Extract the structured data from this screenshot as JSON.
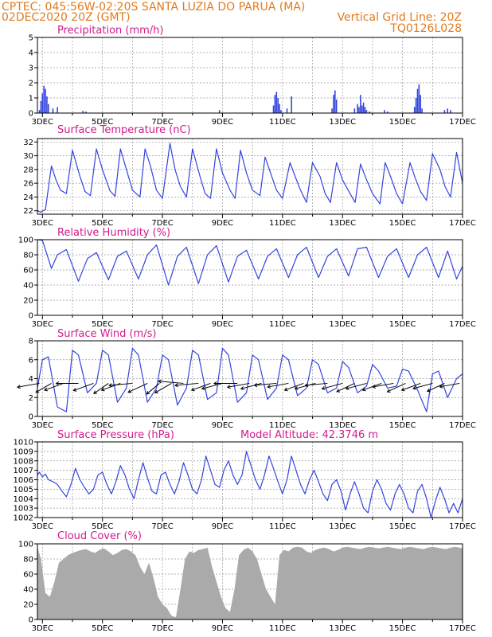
{
  "header": {
    "line1_left": "CPTEC:  045:56W-02:20S  SANTA LUZIA DO PARUA (MA)",
    "line2_left": "02DEC2020 20Z (GMT)",
    "line2_right": "Vertical Grid Line: 20Z",
    "line3_right": "TQ0126L028"
  },
  "colors": {
    "header": "#e07b1e",
    "panel_title": "#d21a8c",
    "series": "#3344dd",
    "cloud_fill": "#aaaaaa",
    "grid": "#999999"
  },
  "chart_data": [
    {
      "type": "bar",
      "title": "Precipitation (mm/h)",
      "x_tick_labels": [
        "3DEC",
        "5DEC",
        "7DEC",
        "9DEC",
        "11DEC",
        "13DEC",
        "15DEC",
        "17DEC"
      ],
      "xlim_days": [
        2.833,
        17.0
      ],
      "ylim": [
        0,
        5
      ],
      "y_ticks": [
        0,
        1,
        2,
        3,
        4,
        5
      ],
      "x": [
        2.9,
        2.95,
        3.0,
        3.05,
        3.1,
        3.15,
        3.2,
        3.35,
        3.5,
        4.35,
        4.45,
        8.9,
        10.7,
        10.75,
        10.8,
        10.85,
        10.9,
        10.95,
        11.15,
        11.3,
        12.65,
        12.7,
        12.75,
        12.8,
        13.4,
        13.5,
        13.55,
        13.6,
        13.65,
        13.7,
        13.75,
        13.8,
        13.9,
        14.4,
        14.5,
        15.4,
        15.45,
        15.5,
        15.55,
        15.6,
        15.65,
        16.4,
        16.5,
        16.6
      ],
      "values": [
        0.2,
        0.8,
        1.3,
        1.8,
        1.6,
        1.1,
        0.6,
        0.3,
        0.4,
        0.15,
        0.1,
        0.2,
        0.5,
        1.2,
        1.4,
        1.0,
        0.6,
        0.2,
        0.3,
        1.1,
        0.3,
        1.2,
        1.5,
        0.9,
        0.3,
        0.6,
        0.4,
        1.2,
        0.5,
        0.7,
        0.4,
        0.2,
        0.1,
        0.2,
        0.1,
        0.4,
        1.0,
        1.6,
        1.9,
        1.2,
        0.3,
        0.2,
        0.3,
        0.2
      ]
    },
    {
      "type": "line",
      "title": "Surface Temperature (nC)",
      "x_tick_labels": [
        "3DEC",
        "5DEC",
        "7DEC",
        "9DEC",
        "11DEC",
        "13DEC",
        "15DEC",
        "17DEC"
      ],
      "xlim_days": [
        2.833,
        17.0
      ],
      "ylim": [
        21.5,
        32.5
      ],
      "y_ticks": [
        22,
        24,
        26,
        28,
        30,
        32
      ],
      "x": [
        2.833,
        2.95,
        3.1,
        3.3,
        3.45,
        3.6,
        3.8,
        4.0,
        4.25,
        4.42,
        4.6,
        4.8,
        5.0,
        5.25,
        5.42,
        5.6,
        5.8,
        6.0,
        6.25,
        6.42,
        6.6,
        6.8,
        7.0,
        7.25,
        7.42,
        7.6,
        7.8,
        8.0,
        8.25,
        8.42,
        8.6,
        8.8,
        9.0,
        9.25,
        9.42,
        9.6,
        9.8,
        10.0,
        10.25,
        10.42,
        10.6,
        10.8,
        11.0,
        11.25,
        11.42,
        11.6,
        11.8,
        12.0,
        12.25,
        12.42,
        12.6,
        12.8,
        13.0,
        13.25,
        13.42,
        13.6,
        13.8,
        14.0,
        14.25,
        14.42,
        14.6,
        14.8,
        15.0,
        15.25,
        15.42,
        15.6,
        15.8,
        16.0,
        16.25,
        16.42,
        16.6,
        16.8,
        17.0
      ],
      "values": [
        22.0,
        21.8,
        22.2,
        28.5,
        26.5,
        25.0,
        24.5,
        30.8,
        27.0,
        24.8,
        24.2,
        31.0,
        28.0,
        24.9,
        24.1,
        31.0,
        28.0,
        25.0,
        24.0,
        31.0,
        28.5,
        25.0,
        23.8,
        31.8,
        28.0,
        25.5,
        24.0,
        31.0,
        27.0,
        24.5,
        23.8,
        31.0,
        27.5,
        25.0,
        23.8,
        30.8,
        27.5,
        25.0,
        24.2,
        29.8,
        27.5,
        25.0,
        23.8,
        29.0,
        27.0,
        25.0,
        23.2,
        29.0,
        27.0,
        24.5,
        23.2,
        29.0,
        26.5,
        24.5,
        23.2,
        28.8,
        26.5,
        24.5,
        23.0,
        29.0,
        27.0,
        24.5,
        23.0,
        29.0,
        26.8,
        24.8,
        23.5,
        30.3,
        28.0,
        25.5,
        24.0,
        30.5,
        26.0
      ]
    },
    {
      "type": "line",
      "title": "Relative Humidity (%)",
      "x_tick_labels": [
        "3DEC",
        "5DEC",
        "7DEC",
        "9DEC",
        "11DEC",
        "13DEC",
        "15DEC",
        "17DEC"
      ],
      "xlim_days": [
        2.833,
        17.0
      ],
      "ylim": [
        0,
        100
      ],
      "y_ticks": [
        0,
        20,
        40,
        60,
        80,
        100
      ],
      "x": [
        2.833,
        3.0,
        3.3,
        3.5,
        3.8,
        4.2,
        4.5,
        4.8,
        5.2,
        5.5,
        5.8,
        6.2,
        6.5,
        6.8,
        7.2,
        7.5,
        7.8,
        8.2,
        8.5,
        8.8,
        9.2,
        9.5,
        9.8,
        10.2,
        10.5,
        10.8,
        11.2,
        11.5,
        11.8,
        12.2,
        12.5,
        12.8,
        13.2,
        13.5,
        13.8,
        14.2,
        14.5,
        14.8,
        15.2,
        15.5,
        15.8,
        16.2,
        16.5,
        16.8,
        17.0
      ],
      "values": [
        100,
        99,
        62,
        80,
        87,
        45,
        75,
        83,
        47,
        78,
        85,
        48,
        80,
        93,
        40,
        78,
        90,
        42,
        80,
        92,
        44,
        78,
        86,
        48,
        78,
        88,
        50,
        80,
        90,
        50,
        78,
        88,
        52,
        88,
        90,
        50,
        78,
        88,
        50,
        80,
        90,
        50,
        85,
        48,
        65
      ]
    },
    {
      "type": "line",
      "title": "Surface Wind (m/s)",
      "x_tick_labels": [
        "3DEC",
        "5DEC",
        "7DEC",
        "9DEC",
        "11DEC",
        "13DEC",
        "15DEC",
        "17DEC"
      ],
      "xlim_days": [
        2.833,
        17.0
      ],
      "ylim": [
        0,
        8
      ],
      "y_ticks": [
        0,
        2,
        4,
        6,
        8
      ],
      "x": [
        2.833,
        3.0,
        3.2,
        3.5,
        3.8,
        4.0,
        4.2,
        4.5,
        4.8,
        5.0,
        5.2,
        5.5,
        5.8,
        6.0,
        6.2,
        6.5,
        6.8,
        7.0,
        7.2,
        7.5,
        7.8,
        8.0,
        8.2,
        8.5,
        8.8,
        9.0,
        9.2,
        9.5,
        9.8,
        10.0,
        10.2,
        10.5,
        10.8,
        11.0,
        11.2,
        11.5,
        11.8,
        12.0,
        12.2,
        12.5,
        12.8,
        13.0,
        13.2,
        13.5,
        13.8,
        14.0,
        14.2,
        14.5,
        14.8,
        15.0,
        15.2,
        15.5,
        15.8,
        16.0,
        16.2,
        16.5,
        16.8,
        17.0
      ],
      "values": [
        3.0,
        6.0,
        6.3,
        1.0,
        0.5,
        7.0,
        6.5,
        2.5,
        3.5,
        7.0,
        6.5,
        1.5,
        3.0,
        7.2,
        6.5,
        1.5,
        3.0,
        6.5,
        6.0,
        1.2,
        3.0,
        7.0,
        6.5,
        1.8,
        2.5,
        7.2,
        6.5,
        1.5,
        2.5,
        6.5,
        6.0,
        1.8,
        3.0,
        6.5,
        6.0,
        2.2,
        3.0,
        6.0,
        5.5,
        2.5,
        3.0,
        5.8,
        5.2,
        2.5,
        3.2,
        5.5,
        4.8,
        3.0,
        3.2,
        5.0,
        4.8,
        2.8,
        0.5,
        4.5,
        4.8,
        2.0,
        4.0,
        4.5
      ],
      "vector_x": [
        2.9,
        3.3,
        3.7,
        4.2,
        4.7,
        5.2,
        5.6,
        6.0,
        6.5,
        6.9,
        7.3,
        7.7,
        8.2,
        8.6,
        9.0,
        9.5,
        9.9,
        10.3,
        10.8,
        11.2,
        11.7,
        12.1,
        12.5,
        13.0,
        13.4,
        13.8,
        14.3,
        14.7,
        15.1,
        15.6,
        16.0,
        16.4,
        16.9
      ],
      "vector_speed": [
        4.0,
        3.2,
        3.6,
        4.0,
        3.8,
        3.2,
        3.6,
        4.2,
        3.8,
        3.0,
        3.4,
        4.5,
        4.2,
        3.6,
        3.8,
        4.2,
        4.0,
        3.8,
        4.0,
        3.8,
        3.6,
        3.8,
        4.0,
        3.8,
        3.5,
        3.8,
        3.6,
        3.8,
        3.6,
        3.6,
        3.6,
        3.4,
        3.6
      ],
      "vector_dir_deg": [
        190,
        210,
        200,
        180,
        200,
        215,
        200,
        185,
        205,
        220,
        210,
        175,
        185,
        200,
        195,
        180,
        190,
        195,
        185,
        190,
        200,
        195,
        185,
        195,
        205,
        195,
        200,
        190,
        205,
        200,
        195,
        205,
        190
      ]
    },
    {
      "type": "line",
      "title": "Surface Pressure (hPa)",
      "annotation": "Model Altitude: 42.3746 m",
      "x_tick_labels": [
        "3DEC",
        "5DEC",
        "7DEC",
        "9DEC",
        "11DEC",
        "13DEC",
        "15DEC",
        "17DEC"
      ],
      "xlim_days": [
        2.833,
        17.0
      ],
      "ylim": [
        1002,
        1010
      ],
      "y_ticks": [
        1002,
        1003,
        1004,
        1005,
        1006,
        1007,
        1008,
        1009,
        1010
      ],
      "x": [
        2.833,
        2.9,
        3.0,
        3.1,
        3.2,
        3.35,
        3.5,
        3.65,
        3.8,
        3.95,
        4.1,
        4.25,
        4.4,
        4.55,
        4.7,
        4.85,
        5.0,
        5.15,
        5.3,
        5.45,
        5.6,
        5.75,
        5.9,
        6.05,
        6.2,
        6.35,
        6.5,
        6.65,
        6.8,
        6.95,
        7.1,
        7.25,
        7.4,
        7.55,
        7.7,
        7.85,
        8.0,
        8.15,
        8.3,
        8.45,
        8.6,
        8.75,
        8.9,
        9.05,
        9.2,
        9.35,
        9.5,
        9.65,
        9.8,
        9.95,
        10.1,
        10.25,
        10.4,
        10.55,
        10.7,
        10.85,
        11.0,
        11.15,
        11.3,
        11.45,
        11.6,
        11.75,
        11.9,
        12.05,
        12.2,
        12.35,
        12.5,
        12.65,
        12.8,
        12.95,
        13.1,
        13.25,
        13.4,
        13.55,
        13.7,
        13.85,
        14.0,
        14.15,
        14.3,
        14.45,
        14.6,
        14.75,
        14.9,
        15.05,
        15.2,
        15.35,
        15.5,
        15.65,
        15.8,
        15.95,
        16.1,
        16.25,
        16.4,
        16.55,
        16.7,
        16.85,
        17.0
      ],
      "values": [
        1006.5,
        1006.8,
        1006.3,
        1006.6,
        1006.0,
        1005.8,
        1005.5,
        1004.8,
        1004.2,
        1005.5,
        1007.2,
        1006.0,
        1005.2,
        1004.5,
        1005.0,
        1006.5,
        1006.8,
        1005.5,
        1004.5,
        1005.8,
        1007.5,
        1006.5,
        1005.0,
        1004.0,
        1006.0,
        1007.8,
        1006.2,
        1004.8,
        1004.5,
        1006.5,
        1006.8,
        1005.5,
        1004.5,
        1005.8,
        1007.8,
        1006.5,
        1005.0,
        1004.5,
        1006.0,
        1008.5,
        1007.0,
        1005.5,
        1005.2,
        1007.0,
        1008.0,
        1006.5,
        1005.5,
        1006.5,
        1009.0,
        1007.5,
        1006.0,
        1005.0,
        1006.5,
        1008.5,
        1007.2,
        1005.8,
        1004.5,
        1006.0,
        1008.5,
        1007.0,
        1005.5,
        1004.5,
        1006.0,
        1007.0,
        1005.8,
        1004.5,
        1003.8,
        1005.5,
        1006.0,
        1004.8,
        1002.8,
        1004.5,
        1005.8,
        1004.5,
        1003.0,
        1002.5,
        1004.8,
        1006.0,
        1005.0,
        1003.5,
        1002.8,
        1004.5,
        1005.5,
        1004.5,
        1003.0,
        1002.5,
        1004.8,
        1005.5,
        1004.0,
        1002.0,
        1003.8,
        1005.2,
        1004.0,
        1002.5,
        1003.5,
        1002.5,
        1004.0
      ]
    },
    {
      "type": "area",
      "title": "Cloud Cover (%)",
      "x_tick_labels": [
        "3DEC",
        "5DEC",
        "7DEC",
        "9DEC",
        "11DEC",
        "13DEC",
        "15DEC",
        "17DEC"
      ],
      "xlim_days": [
        2.833,
        17.0
      ],
      "ylim": [
        0,
        100
      ],
      "y_ticks": [
        0,
        20,
        40,
        60,
        80,
        100
      ],
      "x": [
        2.833,
        2.95,
        3.1,
        3.25,
        3.4,
        3.55,
        3.7,
        3.85,
        4.0,
        4.15,
        4.3,
        4.45,
        4.6,
        4.75,
        4.9,
        5.05,
        5.2,
        5.35,
        5.5,
        5.65,
        5.8,
        5.95,
        6.1,
        6.25,
        6.4,
        6.55,
        6.7,
        6.85,
        7.0,
        7.15,
        7.3,
        7.45,
        7.6,
        7.75,
        7.9,
        8.05,
        8.2,
        8.35,
        8.5,
        8.65,
        8.8,
        8.95,
        9.1,
        9.25,
        9.4,
        9.55,
        9.7,
        9.85,
        10.0,
        10.15,
        10.3,
        10.45,
        10.6,
        10.75,
        10.9,
        11.05,
        11.2,
        11.35,
        11.5,
        11.65,
        11.8,
        11.95,
        12.1,
        12.25,
        12.4,
        12.55,
        12.7,
        12.85,
        13.0,
        13.15,
        13.3,
        13.45,
        13.6,
        13.75,
        13.9,
        14.05,
        14.2,
        14.35,
        14.5,
        14.65,
        14.8,
        14.95,
        15.1,
        15.25,
        15.4,
        15.55,
        15.7,
        15.85,
        16.0,
        16.15,
        16.3,
        16.45,
        16.6,
        16.75,
        16.9,
        17.0
      ],
      "values": [
        96,
        80,
        35,
        30,
        50,
        75,
        80,
        85,
        88,
        90,
        92,
        93,
        90,
        88,
        92,
        94,
        90,
        85,
        88,
        92,
        93,
        90,
        85,
        70,
        60,
        75,
        55,
        30,
        20,
        15,
        5,
        3,
        40,
        80,
        90,
        88,
        92,
        93,
        95,
        70,
        50,
        30,
        15,
        10,
        40,
        85,
        92,
        95,
        90,
        80,
        60,
        40,
        30,
        20,
        85,
        92,
        90,
        95,
        96,
        95,
        90,
        88,
        92,
        94,
        95,
        93,
        90,
        92,
        95,
        96,
        95,
        94,
        93,
        95,
        96,
        95,
        94,
        95,
        96,
        95,
        94,
        93,
        95,
        96,
        95,
        94,
        93,
        95,
        96,
        95,
        94,
        93,
        95,
        96,
        95,
        94
      ]
    }
  ]
}
